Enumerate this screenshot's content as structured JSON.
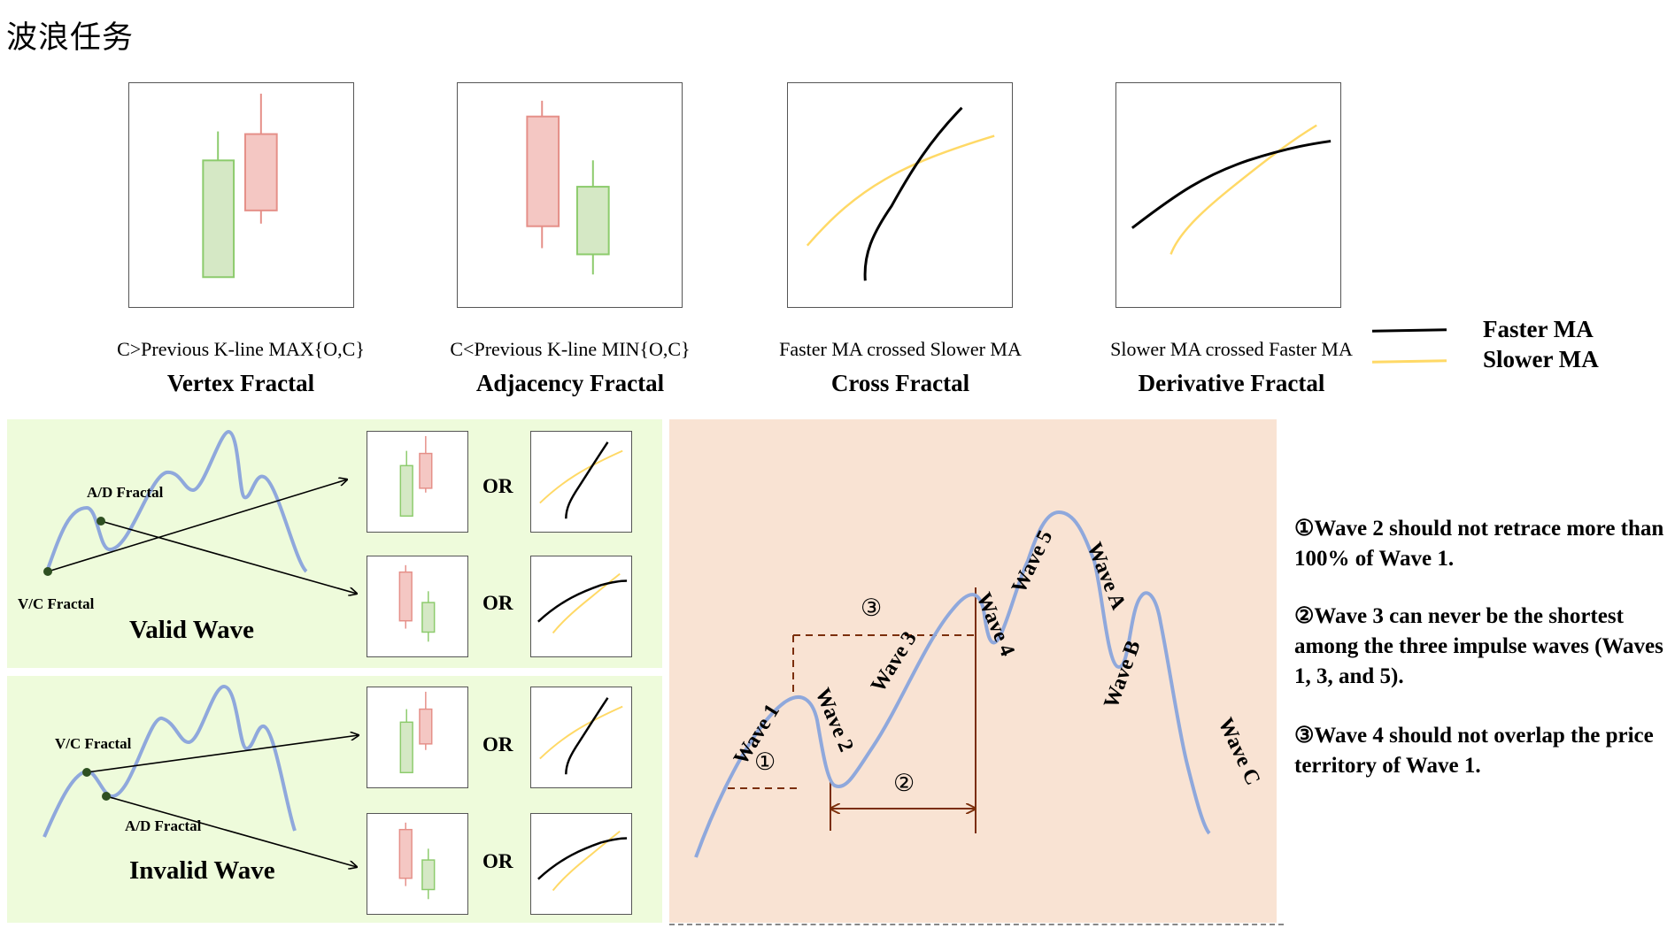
{
  "title": "波浪任务",
  "fractals": [
    {
      "condition": "C>Previous K-line MAX{O,C}",
      "name": "Vertex Fractal",
      "icon": "candlestick-pair-rising"
    },
    {
      "condition": "C<Previous K-line MIN{O,C}",
      "name": "Adjacency Fractal",
      "icon": "candlestick-pair-falling"
    },
    {
      "condition": "Faster MA crossed Slower MA",
      "name": "Cross Fractal",
      "icon": "ma-cross-up"
    },
    {
      "condition": "Slower MA crossed Faster MA",
      "name": "Derivative Fractal",
      "icon": "ma-cross-derivative"
    }
  ],
  "legend": [
    {
      "label": "Faster MA",
      "color": "#000000"
    },
    {
      "label": "Slower MA",
      "color": "#ffd966"
    }
  ],
  "colors": {
    "bull_fill": "#d5e8c5",
    "bull_stroke": "#8ccb6c",
    "bear_fill": "#f4c7c3",
    "bear_stroke": "#e58f88",
    "wave_line": "#8fa8dc",
    "fractal_dot": "#2e5022",
    "measure_line": "#7b2e0a",
    "green_panel": "#eefbdb",
    "peach_panel": "#f9e3d3"
  },
  "valid_wave": {
    "title": "Valid Wave",
    "top_fractal_label": "A/D Fractal",
    "bottom_fractal_label": "V/C Fractal",
    "or_label": "OR"
  },
  "invalid_wave": {
    "title": "Invalid Wave",
    "top_fractal_label": "V/C Fractal",
    "bottom_fractal_label": "A/D Fractal",
    "or_label": "OR"
  },
  "elliott": {
    "waves": [
      "Wave 1",
      "Wave 2",
      "Wave 3",
      "Wave 4",
      "Wave 5",
      "Wave A",
      "Wave B",
      "Wave C"
    ],
    "markers": [
      "①",
      "②",
      "③"
    ]
  },
  "rules": [
    "①Wave 2 should not retrace more than 100% of Wave 1.",
    "②Wave 3 can never be the shortest among the three impulse waves (Waves 1, 3, and 5).",
    "③Wave 4 should not overlap the price territory of Wave 1."
  ]
}
